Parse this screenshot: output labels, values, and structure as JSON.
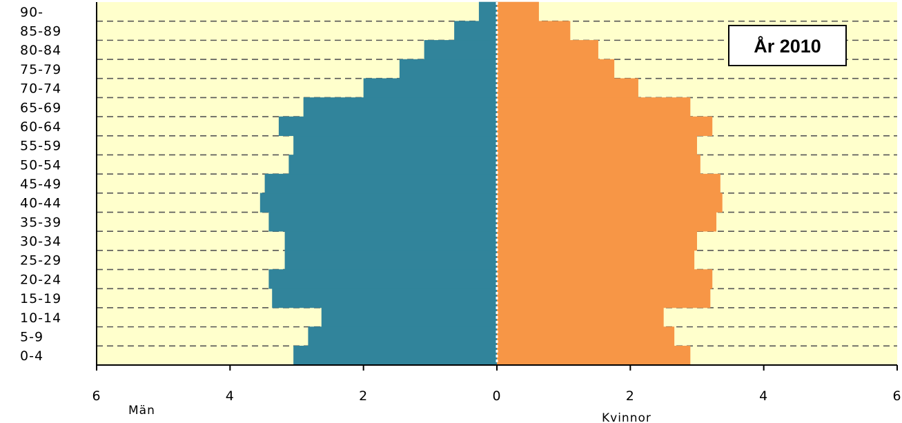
{
  "chart_data": {
    "type": "bar",
    "orientation": "horizontal",
    "style": "population-pyramid",
    "categories": [
      "0-4",
      "5-9",
      "10-14",
      "15-19",
      "20-24",
      "25-29",
      "30-34",
      "35-39",
      "40-44",
      "45-49",
      "50-54",
      "55-59",
      "60-64",
      "65-69",
      "70-74",
      "75-79",
      "80-84",
      "85-89",
      "90-"
    ],
    "series": [
      {
        "name": "Män",
        "side": "left",
        "color": "#31849B",
        "values": [
          3.05,
          2.83,
          2.63,
          3.37,
          3.42,
          3.18,
          3.18,
          3.42,
          3.55,
          3.48,
          3.12,
          3.05,
          3.27,
          2.9,
          2.0,
          1.46,
          1.09,
          0.64,
          0.27
        ]
      },
      {
        "name": "Kvinnor",
        "side": "right",
        "color": "#F79646",
        "values": [
          2.9,
          2.66,
          2.5,
          3.2,
          3.23,
          2.96,
          3.0,
          3.29,
          3.38,
          3.35,
          3.05,
          3.0,
          3.23,
          2.9,
          2.12,
          1.76,
          1.52,
          1.1,
          0.63
        ]
      }
    ],
    "xlim": [
      -6,
      6
    ],
    "x_ticks": [
      "6",
      "4",
      "2",
      "0",
      "2",
      "4",
      "6"
    ],
    "xlabel_left": "Män",
    "xlabel_right": "Kvinnor",
    "annotation": "År 2010",
    "plot_background": "#FFFFCC",
    "grid": "horizontal dashed",
    "center_line": "white dotted"
  }
}
